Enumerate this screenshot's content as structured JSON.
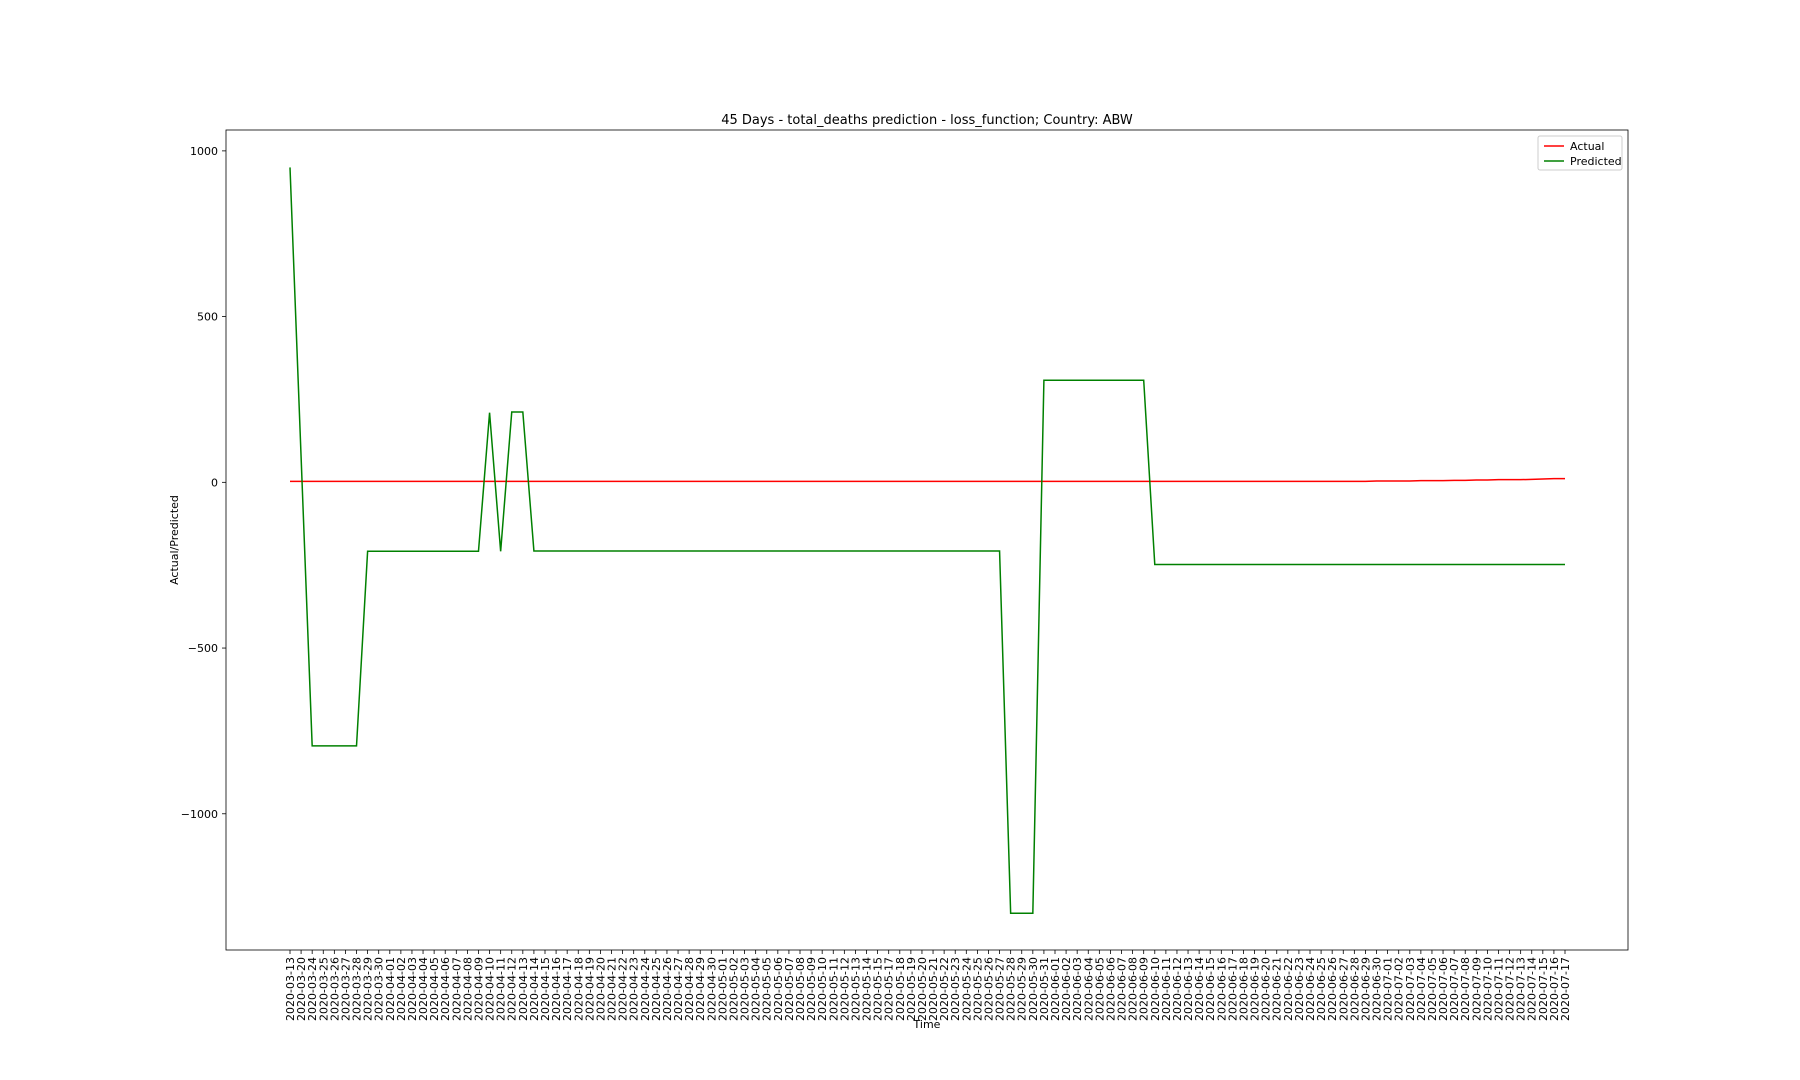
{
  "chart_data": {
    "type": "line",
    "title": "45 Days - total_deaths prediction - loss_function; Country: ABW",
    "xlabel": "Time",
    "ylabel": "Actual/Predicted",
    "categories": [
      "2020-03-13",
      "2020-03-20",
      "2020-03-24",
      "2020-03-25",
      "2020-03-26",
      "2020-03-27",
      "2020-03-28",
      "2020-03-29",
      "2020-03-30",
      "2020-04-01",
      "2020-04-02",
      "2020-04-03",
      "2020-04-04",
      "2020-04-05",
      "2020-04-06",
      "2020-04-07",
      "2020-04-08",
      "2020-04-09",
      "2020-04-10",
      "2020-04-11",
      "2020-04-12",
      "2020-04-13",
      "2020-04-14",
      "2020-04-15",
      "2020-04-16",
      "2020-04-17",
      "2020-04-18",
      "2020-04-19",
      "2020-04-20",
      "2020-04-21",
      "2020-04-22",
      "2020-04-23",
      "2020-04-24",
      "2020-04-25",
      "2020-04-26",
      "2020-04-27",
      "2020-04-28",
      "2020-04-29",
      "2020-04-30",
      "2020-05-01",
      "2020-05-02",
      "2020-05-03",
      "2020-05-04",
      "2020-05-05",
      "2020-05-06",
      "2020-05-07",
      "2020-05-08",
      "2020-05-09",
      "2020-05-10",
      "2020-05-11",
      "2020-05-12",
      "2020-05-13",
      "2020-05-14",
      "2020-05-15",
      "2020-05-17",
      "2020-05-18",
      "2020-05-19",
      "2020-05-20",
      "2020-05-21",
      "2020-05-22",
      "2020-05-23",
      "2020-05-24",
      "2020-05-25",
      "2020-05-26",
      "2020-05-27",
      "2020-05-28",
      "2020-05-29",
      "2020-05-30",
      "2020-05-31",
      "2020-06-01",
      "2020-06-02",
      "2020-06-03",
      "2020-06-04",
      "2020-06-05",
      "2020-06-06",
      "2020-06-07",
      "2020-06-08",
      "2020-06-09",
      "2020-06-10",
      "2020-06-11",
      "2020-06-12",
      "2020-06-13",
      "2020-06-14",
      "2020-06-15",
      "2020-06-16",
      "2020-06-17",
      "2020-06-18",
      "2020-06-19",
      "2020-06-20",
      "2020-06-21",
      "2020-06-22",
      "2020-06-23",
      "2020-06-24",
      "2020-06-25",
      "2020-06-26",
      "2020-06-27",
      "2020-06-28",
      "2020-06-29",
      "2020-06-30",
      "2020-07-01",
      "2020-07-02",
      "2020-07-03",
      "2020-07-04",
      "2020-07-05",
      "2020-07-06",
      "2020-07-07",
      "2020-07-08",
      "2020-07-09",
      "2020-07-10",
      "2020-07-11",
      "2020-07-12",
      "2020-07-13",
      "2020-07-14",
      "2020-07-15",
      "2020-07-16",
      "2020-07-17"
    ],
    "series": [
      {
        "name": "Actual",
        "color": "#ff0000",
        "values": [
          3,
          3,
          3,
          3,
          3,
          3,
          3,
          3,
          3,
          3,
          3,
          3,
          3,
          3,
          3,
          3,
          3,
          3,
          3,
          3,
          3,
          3,
          3,
          3,
          3,
          3,
          3,
          3,
          3,
          3,
          3,
          3,
          3,
          3,
          3,
          3,
          3,
          3,
          3,
          3,
          3,
          3,
          3,
          3,
          3,
          3,
          3,
          3,
          3,
          3,
          3,
          3,
          3,
          3,
          3,
          3,
          3,
          3,
          3,
          3,
          3,
          3,
          3,
          3,
          3,
          3,
          3,
          3,
          3,
          3,
          3,
          3,
          3,
          3,
          3,
          3,
          3,
          3,
          3,
          3,
          3,
          3,
          3,
          3,
          3,
          3,
          3,
          3,
          3,
          3,
          3,
          3,
          3,
          3,
          3,
          3,
          3,
          3,
          4,
          4,
          4,
          4,
          5,
          5,
          5,
          6,
          6,
          7,
          7,
          8,
          8,
          8,
          9,
          10,
          11,
          11
        ]
      },
      {
        "name": "Predicted",
        "color": "#008000",
        "values": [
          950,
          77,
          -795,
          -795,
          -795,
          -795,
          -795,
          -208,
          -208,
          -208,
          -208,
          -208,
          -208,
          -208,
          -208,
          -208,
          -208,
          -208,
          210,
          -208,
          212,
          212,
          -207,
          -207,
          -207,
          -207,
          -207,
          -207,
          -207,
          -207,
          -207,
          -207,
          -207,
          -207,
          -207,
          -207,
          -207,
          -207,
          -207,
          -207,
          -207,
          -207,
          -207,
          -207,
          -207,
          -207,
          -207,
          -207,
          -207,
          -207,
          -207,
          -207,
          -207,
          -207,
          -207,
          -207,
          -207,
          -207,
          -207,
          -207,
          -207,
          -207,
          -207,
          -207,
          -207,
          -1300,
          -1300,
          -1300,
          308,
          308,
          308,
          308,
          308,
          308,
          308,
          308,
          308,
          308,
          -248,
          -248,
          -248,
          -248,
          -248,
          -248,
          -248,
          -248,
          -248,
          -248,
          -248,
          -248,
          -248,
          -248,
          -248,
          -248,
          -248,
          -248,
          -248,
          -248,
          -248,
          -248,
          -248,
          -248,
          -248,
          -248,
          -248,
          -248,
          -248,
          -248,
          -248,
          -248,
          -248,
          -248,
          -248,
          -248,
          -248,
          -248
        ]
      }
    ],
    "ylim": [
      -1411,
      1063
    ],
    "yticks": [
      {
        "value": -1000,
        "label": "−1000"
      },
      {
        "value": -500,
        "label": "−500"
      },
      0,
      500,
      1000
    ],
    "legend": "upper right"
  }
}
